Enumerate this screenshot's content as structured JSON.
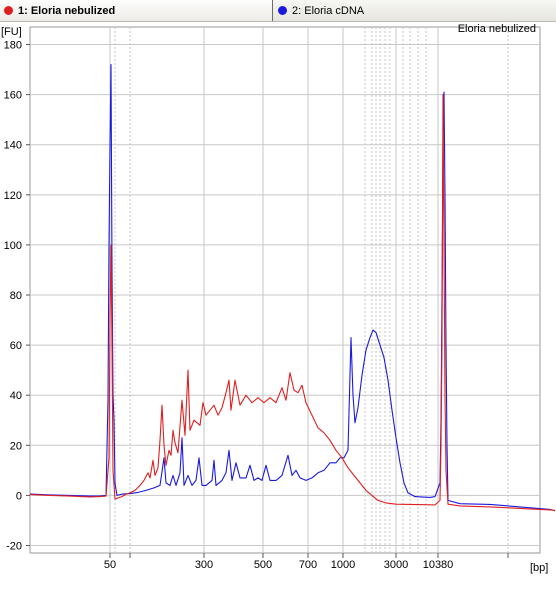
{
  "tabs": [
    {
      "label": "1: Eloria nebulized",
      "color": "#e02020"
    },
    {
      "label": "2: Eloria cDNA",
      "color": "#1a1adf"
    }
  ],
  "chart_data": {
    "type": "line",
    "title": "Eloria nebulized",
    "ylabel": "[FU]",
    "xlabel": "[bp]",
    "ylim": [
      -23,
      187
    ],
    "yticks": [
      -20,
      0,
      20,
      40,
      60,
      80,
      100,
      120,
      140,
      160,
      180
    ],
    "xtick_labels": [
      "50",
      "300",
      "500",
      "700",
      "1000",
      "3000",
      "10380"
    ],
    "grid": true,
    "series": [
      {
        "name": "1: Eloria nebulized",
        "color": "#e02020",
        "points": [
          [
            0,
            0.3
          ],
          [
            20,
            0
          ],
          [
            40,
            -0.3
          ],
          [
            60,
            -0.6
          ],
          [
            70,
            -0.5
          ],
          [
            76,
            -0.3
          ],
          [
            79,
            15
          ],
          [
            80,
            70
          ],
          [
            81,
            100
          ],
          [
            82,
            60
          ],
          [
            83,
            10
          ],
          [
            85,
            -1.5
          ],
          [
            88,
            -1
          ],
          [
            92,
            -0.5
          ],
          [
            96,
            0.5
          ],
          [
            100,
            1
          ],
          [
            105,
            2
          ],
          [
            110,
            4
          ],
          [
            114,
            6
          ],
          [
            118,
            9
          ],
          [
            120,
            7
          ],
          [
            123,
            14
          ],
          [
            125,
            8
          ],
          [
            128,
            11
          ],
          [
            130,
            22
          ],
          [
            132,
            36
          ],
          [
            134,
            20
          ],
          [
            136,
            12
          ],
          [
            139,
            18
          ],
          [
            141,
            16
          ],
          [
            143,
            26
          ],
          [
            145,
            21
          ],
          [
            148,
            17
          ],
          [
            152,
            38
          ],
          [
            155,
            24
          ],
          [
            158,
            50
          ],
          [
            160,
            26
          ],
          [
            164,
            30
          ],
          [
            170,
            28
          ],
          [
            173,
            37
          ],
          [
            176,
            32
          ],
          [
            180,
            34
          ],
          [
            184,
            36
          ],
          [
            188,
            32
          ],
          [
            192,
            35
          ],
          [
            196,
            41
          ],
          [
            199,
            46
          ],
          [
            201,
            34
          ],
          [
            205,
            46
          ],
          [
            210,
            36
          ],
          [
            216,
            40
          ],
          [
            222,
            37
          ],
          [
            228,
            39
          ],
          [
            234,
            37
          ],
          [
            240,
            39
          ],
          [
            246,
            37
          ],
          [
            252,
            43
          ],
          [
            256,
            38
          ],
          [
            260,
            49
          ],
          [
            264,
            42
          ],
          [
            268,
            41
          ],
          [
            272,
            44
          ],
          [
            276,
            37
          ],
          [
            282,
            32
          ],
          [
            288,
            27
          ],
          [
            294,
            25
          ],
          [
            300,
            22
          ],
          [
            306,
            18
          ],
          [
            312,
            15
          ],
          [
            318,
            11
          ],
          [
            324,
            8
          ],
          [
            330,
            5
          ],
          [
            336,
            2
          ],
          [
            342,
            0
          ],
          [
            348,
            -2
          ],
          [
            356,
            -3
          ],
          [
            366,
            -3.5
          ],
          [
            380,
            -3.6
          ],
          [
            395,
            -3.7
          ],
          [
            405,
            -3.8
          ],
          [
            410,
            -2
          ],
          [
            411,
            20
          ],
          [
            412,
            60
          ],
          [
            413,
            160
          ],
          [
            414,
            100
          ],
          [
            415,
            40
          ],
          [
            416,
            10
          ],
          [
            418,
            -3.5
          ],
          [
            430,
            -4.2
          ],
          [
            460,
            -4.6
          ],
          [
            490,
            -5.2
          ],
          [
            520,
            -5.8
          ],
          [
            525,
            -6
          ]
        ]
      },
      {
        "name": "2: Eloria cDNA",
        "color": "#1a1adf",
        "points": [
          [
            0,
            0.5
          ],
          [
            20,
            0.2
          ],
          [
            40,
            0
          ],
          [
            60,
            -0.3
          ],
          [
            70,
            -0.2
          ],
          [
            76,
            0
          ],
          [
            78,
            38
          ],
          [
            79,
            100
          ],
          [
            80,
            140
          ],
          [
            81,
            172
          ],
          [
            82,
            90
          ],
          [
            83,
            40
          ],
          [
            84,
            30
          ],
          [
            85,
            5
          ],
          [
            87,
            0
          ],
          [
            92,
            0.5
          ],
          [
            100,
            0.7
          ],
          [
            108,
            1.2
          ],
          [
            116,
            2
          ],
          [
            124,
            3
          ],
          [
            130,
            4
          ],
          [
            134,
            15
          ],
          [
            136,
            5
          ],
          [
            140,
            4
          ],
          [
            143,
            8
          ],
          [
            146,
            4
          ],
          [
            150,
            9
          ],
          [
            152,
            23
          ],
          [
            154,
            4
          ],
          [
            158,
            8
          ],
          [
            162,
            4
          ],
          [
            166,
            6
          ],
          [
            169,
            15
          ],
          [
            172,
            4
          ],
          [
            176,
            4
          ],
          [
            182,
            6
          ],
          [
            184,
            14
          ],
          [
            186,
            4
          ],
          [
            192,
            6
          ],
          [
            196,
            9
          ],
          [
            199,
            18
          ],
          [
            202,
            6
          ],
          [
            206,
            13
          ],
          [
            210,
            7
          ],
          [
            216,
            7
          ],
          [
            220,
            12
          ],
          [
            224,
            6
          ],
          [
            228,
            7
          ],
          [
            232,
            6
          ],
          [
            236,
            12
          ],
          [
            240,
            6
          ],
          [
            246,
            6
          ],
          [
            252,
            8
          ],
          [
            258,
            16
          ],
          [
            262,
            8
          ],
          [
            266,
            10
          ],
          [
            270,
            7
          ],
          [
            276,
            6
          ],
          [
            282,
            7
          ],
          [
            288,
            9
          ],
          [
            294,
            10
          ],
          [
            300,
            13
          ],
          [
            306,
            13
          ],
          [
            310,
            15
          ],
          [
            314,
            15
          ],
          [
            318,
            18
          ],
          [
            321,
            63
          ],
          [
            323,
            40
          ],
          [
            325,
            29
          ],
          [
            328,
            35
          ],
          [
            332,
            48
          ],
          [
            336,
            58
          ],
          [
            340,
            63
          ],
          [
            343,
            66
          ],
          [
            346,
            65
          ],
          [
            350,
            60
          ],
          [
            354,
            55
          ],
          [
            358,
            46
          ],
          [
            362,
            34
          ],
          [
            366,
            23
          ],
          [
            370,
            13
          ],
          [
            374,
            5
          ],
          [
            378,
            1
          ],
          [
            385,
            -0.5
          ],
          [
            400,
            -0.8
          ],
          [
            405,
            -0.5
          ],
          [
            410,
            5
          ],
          [
            411,
            30
          ],
          [
            412,
            80
          ],
          [
            413,
            140
          ],
          [
            414,
            161
          ],
          [
            415,
            120
          ],
          [
            416,
            60
          ],
          [
            417,
            20
          ],
          [
            418,
            -2
          ],
          [
            430,
            -3.3
          ],
          [
            460,
            -3.6
          ],
          [
            490,
            -4.6
          ],
          [
            520,
            -5.6
          ],
          [
            525,
            -6.2
          ]
        ]
      }
    ]
  }
}
